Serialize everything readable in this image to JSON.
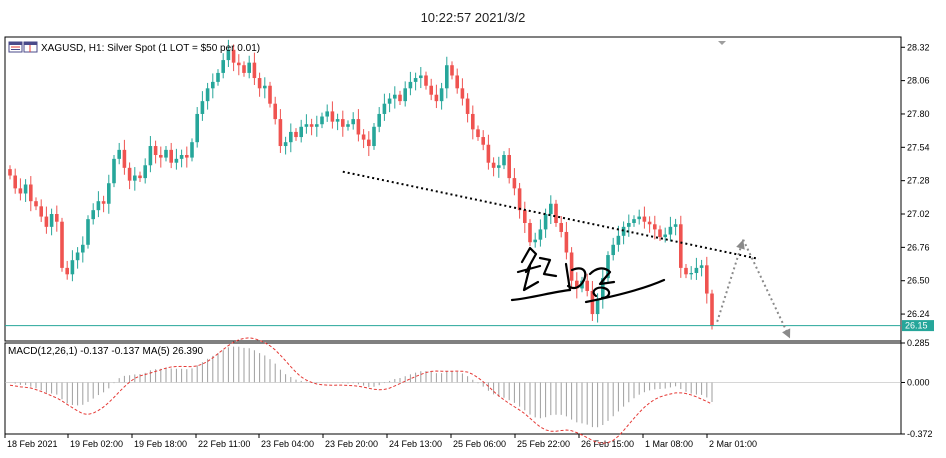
{
  "timestamp": "10:22:57 2021/3/2",
  "title": "XAGUSD, H1:  Silver Spot (1 LOT = $50 per 0.01)",
  "price_badge": "26.15",
  "icons": [
    "chart-window-icon",
    "grid-small-icon"
  ],
  "colors": {
    "bull": "#26a69a",
    "bear": "#ef5350",
    "macd_hist": "#9e9e9e",
    "signal": "#e53935",
    "hline": "#26a69a",
    "trend": "#000000",
    "arrow": "#8a8a8a"
  },
  "chart_data": [
    {
      "type": "candlestick",
      "ylim": [
        26.03,
        28.4
      ],
      "yticks": [
        "28.32",
        "28.06",
        "27.80",
        "27.54",
        "27.28",
        "27.02",
        "26.76",
        "26.50",
        "26.24"
      ],
      "xticks": [
        "18 Feb 2021",
        "19 Feb 02:00",
        "19 Feb 18:00",
        "22 Feb 11:00",
        "23 Feb 04:00",
        "23 Feb 20:00",
        "24 Feb 13:00",
        "25 Feb 06:00",
        "25 Feb 22:00",
        "26 Feb 15:00",
        "1 Mar 08:00",
        "2 Mar 01:00"
      ],
      "close": [
        27.32,
        27.22,
        27.18,
        27.25,
        27.12,
        27.08,
        27.0,
        26.92,
        27.02,
        26.96,
        26.6,
        26.55,
        26.66,
        26.72,
        26.78,
        26.98,
        27.05,
        27.12,
        27.1,
        27.26,
        27.45,
        27.52,
        27.38,
        27.28,
        27.32,
        27.3,
        27.4,
        27.55,
        27.48,
        27.46,
        27.52,
        27.42,
        27.45,
        27.48,
        27.46,
        27.58,
        27.8,
        27.9,
        28.0,
        28.05,
        28.12,
        28.22,
        28.3,
        28.2,
        28.18,
        28.12,
        28.2,
        28.08,
        28.0,
        28.02,
        27.88,
        27.76,
        27.55,
        27.58,
        27.66,
        27.62,
        27.7,
        27.72,
        27.7,
        27.72,
        27.78,
        27.82,
        27.74,
        27.76,
        27.7,
        27.72,
        27.76,
        27.64,
        27.6,
        27.55,
        27.7,
        27.8,
        27.88,
        27.92,
        27.95,
        27.9,
        28.0,
        28.05,
        28.08,
        28.1,
        28.02,
        27.95,
        27.9,
        28.0,
        28.18,
        28.1,
        28.0,
        27.92,
        27.8,
        27.68,
        27.62,
        27.56,
        27.42,
        27.38,
        27.4,
        27.48,
        27.3,
        27.22,
        27.05,
        26.95,
        26.8,
        26.82,
        26.9,
        27.02,
        27.1,
        26.95,
        26.88,
        26.72,
        26.5,
        26.44,
        26.5,
        26.42,
        26.24,
        26.36,
        26.52,
        26.7,
        26.78,
        26.85,
        26.92,
        26.95,
        26.98,
        27.0,
        26.96,
        26.94,
        26.9,
        26.84,
        26.86,
        26.92,
        26.94,
        26.6,
        26.55,
        26.56,
        26.6,
        26.62,
        26.4,
        26.15
      ],
      "ohlc_note": "open of each candle = previous close"
    },
    {
      "type": "macd",
      "label": "MACD(12,26,1) -0.137 -0.137 MA(5) 26.390",
      "params": "MACD(12,26,1)",
      "macd_value": "-0.137",
      "ylim": [
        -0.372,
        0.285
      ],
      "yticks": [
        "0.285",
        "0.000",
        "-0.372"
      ],
      "signal_note": "dashed red = MA(5) of histogram"
    }
  ],
  "annotations": {
    "trendline": {
      "from_index": 64,
      "from_price": 27.35,
      "to_index": 144,
      "to_price": 26.67
    },
    "hline": {
      "price": 26.15
    },
    "arrow_up": {
      "from_index": 136,
      "from_price": 26.18,
      "to_index": 141,
      "to_price": 26.82
    },
    "arrow_down": {
      "from_index": 141,
      "from_price": 26.82,
      "to_index": 150,
      "to_price": 26.05
    }
  },
  "signature": "handwritten-signature"
}
